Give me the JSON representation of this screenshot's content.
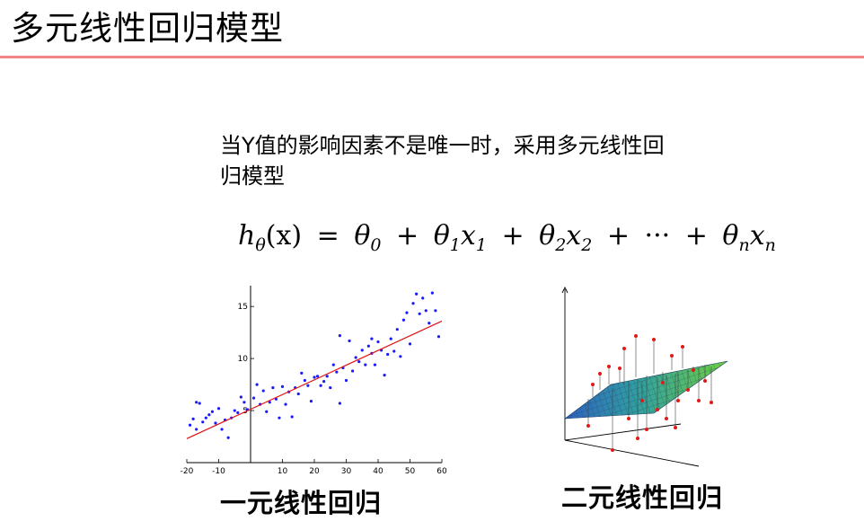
{
  "slide": {
    "title": "多元线性回归模型",
    "body_line1": "当Y值的影响因素不是唯一时，采用多元线性回",
    "body_line2": "归模型"
  },
  "formula": {
    "lhs": "h",
    "lhs_sub": "θ",
    "lhs_arg": "(x)",
    "eq": "=",
    "t0": "θ",
    "t0_sub": "0",
    "t1": "θ",
    "t1_sub": "1",
    "x1": "x",
    "x1_sub": "1",
    "t2": "θ",
    "t2_sub": "2",
    "x2": "x",
    "x2_sub": "2",
    "dots": "···",
    "tn": "θ",
    "tn_sub": "n",
    "xn": "x",
    "xn_sub": "n",
    "plus": "+"
  },
  "captions": {
    "simple": "一元线性回归",
    "multiple": "二元线性回归"
  },
  "chart_data": {
    "type": "scatter",
    "xlim": [
      -20,
      60
    ],
    "ylim": [
      0,
      17
    ],
    "x_ticks": [
      "-20",
      "-10",
      "10",
      "20",
      "30",
      "40",
      "50",
      "60"
    ],
    "x_tick_values": [
      -20,
      -10,
      10,
      20,
      30,
      40,
      50,
      60
    ],
    "y_ticks": [
      "5",
      "10",
      "15"
    ],
    "y_tick_values": [
      5,
      10,
      15
    ],
    "grid": false,
    "point_color": "#1a1aff",
    "line_color": "#e01010",
    "fit_line": {
      "x": [
        -20,
        60
      ],
      "y": [
        2.3,
        13.6
      ]
    },
    "points": [
      [
        -19,
        3.6
      ],
      [
        -18,
        4.2
      ],
      [
        -17,
        5.8
      ],
      [
        -17,
        3.2
      ],
      [
        -16,
        5.7
      ],
      [
        -15,
        3.9
      ],
      [
        -14,
        4.3
      ],
      [
        -13,
        4.6
      ],
      [
        -12,
        4.9
      ],
      [
        -11,
        3.8
      ],
      [
        -10,
        5.2
      ],
      [
        -9,
        3.2
      ],
      [
        -8,
        4.1
      ],
      [
        -7,
        2.4
      ],
      [
        -6,
        4.3
      ],
      [
        -5,
        5.0
      ],
      [
        -4,
        4.8
      ],
      [
        -3,
        6.3
      ],
      [
        -2,
        5.8
      ],
      [
        -1,
        5.1
      ],
      [
        1,
        6.2
      ],
      [
        2,
        7.5
      ],
      [
        3,
        5.6
      ],
      [
        4,
        6.9
      ],
      [
        5,
        4.9
      ],
      [
        6,
        5.8
      ],
      [
        7,
        7.2
      ],
      [
        8,
        6.1
      ],
      [
        9,
        4.3
      ],
      [
        10,
        7.3
      ],
      [
        11,
        5.6
      ],
      [
        12,
        6.8
      ],
      [
        13,
        4.4
      ],
      [
        14,
        7.2
      ],
      [
        15,
        6.6
      ],
      [
        16,
        8.6
      ],
      [
        17,
        7.9
      ],
      [
        18,
        7.4
      ],
      [
        19,
        5.9
      ],
      [
        20,
        8.2
      ],
      [
        21,
        8.3
      ],
      [
        22,
        7.4
      ],
      [
        23,
        7.8
      ],
      [
        24,
        8.3
      ],
      [
        25,
        7.2
      ],
      [
        26,
        9.4
      ],
      [
        27,
        8.7
      ],
      [
        28,
        5.7
      ],
      [
        28,
        12.2
      ],
      [
        29,
        9.1
      ],
      [
        30,
        7.9
      ],
      [
        31,
        11.7
      ],
      [
        32,
        8.8
      ],
      [
        33,
        10.1
      ],
      [
        34,
        9.7
      ],
      [
        35,
        10.8
      ],
      [
        36,
        9.4
      ],
      [
        37,
        11.2
      ],
      [
        38,
        10.5
      ],
      [
        38,
        11.9
      ],
      [
        39,
        9.4
      ],
      [
        40,
        11.6
      ],
      [
        41,
        10.8
      ],
      [
        42,
        8.4
      ],
      [
        43,
        10.4
      ],
      [
        44,
        11.9
      ],
      [
        45,
        10.7
      ],
      [
        46,
        12.8
      ],
      [
        47,
        10.2
      ],
      [
        48,
        13.7
      ],
      [
        49,
        14.4
      ],
      [
        50,
        11.4
      ],
      [
        51,
        15.3
      ],
      [
        52,
        16.2
      ],
      [
        53,
        14.3
      ],
      [
        54,
        15.8
      ],
      [
        55,
        14.6
      ],
      [
        56,
        13.4
      ],
      [
        57,
        16.3
      ],
      [
        58,
        14.6
      ],
      [
        59,
        12.1
      ]
    ]
  }
}
